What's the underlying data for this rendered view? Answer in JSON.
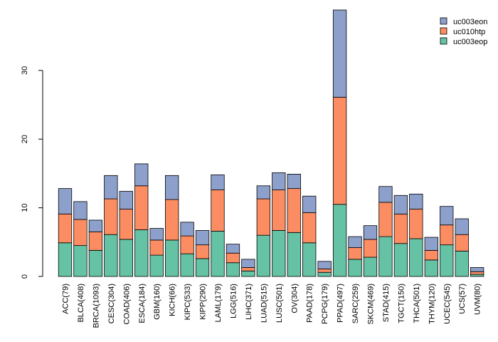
{
  "chart_data": {
    "type": "bar",
    "stacked": true,
    "title": "",
    "xlabel": "",
    "ylabel": "",
    "ylim": [
      0,
      38.7
    ],
    "yticks": [
      0,
      10,
      20,
      30
    ],
    "legend_position": "top-right",
    "categories": [
      "ACC(79)",
      "BLCA(408)",
      "BRCA(1093)",
      "CESC(304)",
      "COAD(406)",
      "ESCA(184)",
      "GBM(160)",
      "KICH(66)",
      "KIPC(533)",
      "KIPP(290)",
      "LAML(179)",
      "LGG(516)",
      "LIHC(371)",
      "LUAD(515)",
      "LUSC(501)",
      "OV(304)",
      "PAAD(178)",
      "PCPG(179)",
      "PPAD(497)",
      "SARC(259)",
      "SKCM(469)",
      "STAD(415)",
      "TGCT(150)",
      "THCA(501)",
      "THYM(120)",
      "UCEC(545)",
      "UCS(57)",
      "UVM(80)"
    ],
    "series": [
      {
        "name": "uc003eop",
        "color": "#66c2a5",
        "values": [
          4.9,
          4.5,
          3.8,
          6.1,
          5.4,
          6.8,
          3.1,
          5.3,
          3.3,
          2.6,
          6.6,
          2.0,
          0.8,
          6.0,
          6.7,
          6.4,
          4.9,
          0.6,
          10.5,
          2.5,
          2.8,
          5.8,
          4.8,
          5.5,
          2.4,
          4.6,
          3.7,
          0.3
        ]
      },
      {
        "name": "uc010htp",
        "color": "#fc8d62",
        "values": [
          4.2,
          3.8,
          2.7,
          5.2,
          4.4,
          6.4,
          2.2,
          5.9,
          2.6,
          2.0,
          6.0,
          1.4,
          0.5,
          5.3,
          5.9,
          6.4,
          4.4,
          0.5,
          15.6,
          1.7,
          2.6,
          5.0,
          4.3,
          4.3,
          1.4,
          2.9,
          2.4,
          0.4
        ]
      },
      {
        "name": "uc003eon",
        "color": "#8da0cb",
        "values": [
          3.7,
          2.6,
          1.7,
          3.4,
          2.6,
          3.2,
          1.7,
          3.5,
          2.0,
          2.1,
          2.2,
          1.3,
          1.2,
          1.9,
          2.5,
          2.1,
          2.4,
          1.1,
          12.7,
          1.6,
          2.0,
          2.3,
          2.7,
          2.2,
          1.9,
          2.7,
          2.3,
          0.6
        ]
      }
    ]
  }
}
